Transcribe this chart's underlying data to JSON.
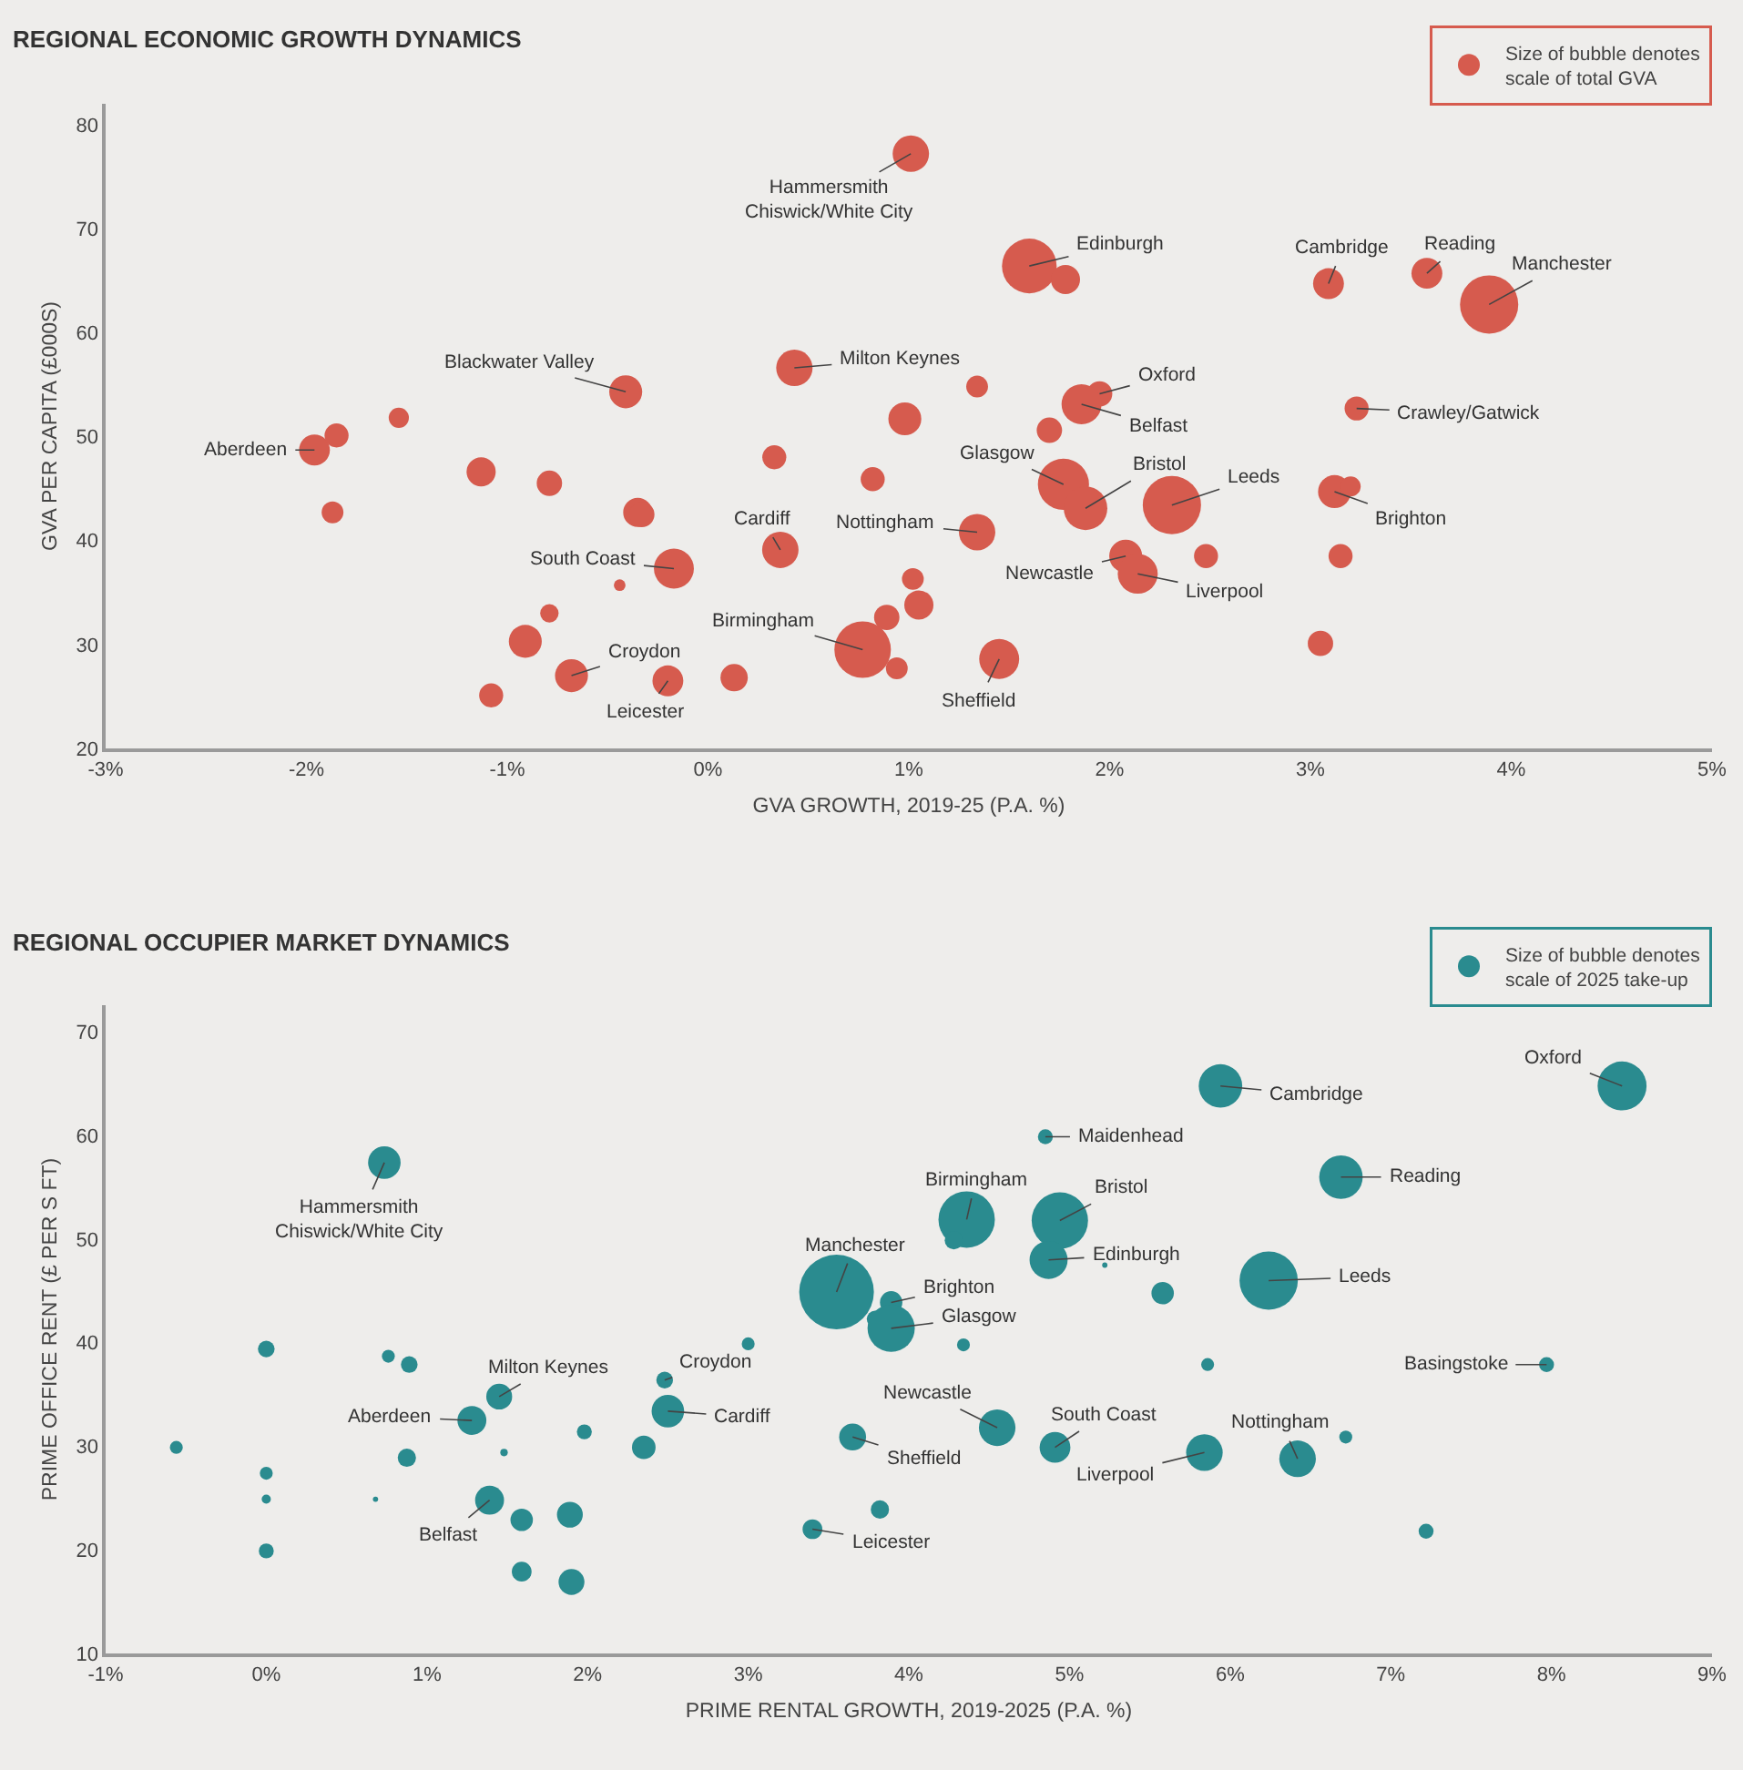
{
  "chart_data": [
    {
      "type": "bubble",
      "title": "REGIONAL ECONOMIC GROWTH DYNAMICS",
      "xlabel": "GVA GROWTH, 2019-25 (P.A. %)",
      "ylabel": "GVA PER CAPITA (£000S)",
      "xlim": [
        -3,
        5
      ],
      "ylim": [
        20,
        82
      ],
      "xticks": [
        {
          "value": -3,
          "label": "-3%"
        },
        {
          "value": -2,
          "label": "-2%"
        },
        {
          "value": -1,
          "label": "-1%"
        },
        {
          "value": 0,
          "label": "0%"
        },
        {
          "value": 1,
          "label": "1%"
        },
        {
          "value": 2,
          "label": "2%"
        },
        {
          "value": 3,
          "label": "3%"
        },
        {
          "value": 4,
          "label": "4%"
        },
        {
          "value": 5,
          "label": "5%"
        }
      ],
      "yticks": [
        20,
        30,
        40,
        50,
        60,
        70,
        80
      ],
      "legend": "top right",
      "grid": false,
      "series": [
        {
          "name": "Size of bubble denotes\nscale of total GVA",
          "color": "#d65b4e",
          "x": [
            1.01,
            1.6,
            1.78,
            3.09,
            3.58,
            3.89,
            0.43,
            -0.41,
            1.34,
            1.95,
            1.86,
            0.98,
            1.7,
            3.23,
            -1.96,
            -1.85,
            -1.54,
            -1.87,
            -1.13,
            -0.79,
            -0.35,
            -0.33,
            0.36,
            -0.17,
            -0.44,
            -0.79,
            -0.91,
            -0.68,
            -1.08,
            -0.2,
            0.13,
            0.77,
            0.33,
            0.82,
            1.34,
            1.77,
            1.88,
            2.31,
            3.12,
            3.2,
            3.15,
            2.48,
            2.08,
            2.14,
            1.02,
            1.05,
            0.89,
            0.94,
            1.45,
            3.05
          ],
          "values": [
            77.2,
            66.4,
            65.1,
            64.7,
            65.7,
            62.7,
            56.6,
            54.3,
            54.8,
            54.1,
            53.1,
            51.7,
            50.6,
            52.7,
            48.7,
            50.1,
            51.8,
            42.7,
            46.6,
            45.5,
            42.7,
            42.5,
            39.1,
            37.3,
            35.7,
            33.0,
            30.3,
            27.0,
            25.1,
            26.5,
            26.8,
            29.5,
            48.0,
            45.9,
            40.8,
            45.4,
            43.1,
            43.4,
            44.7,
            45.2,
            38.5,
            38.5,
            38.5,
            36.8,
            36.3,
            33.8,
            32.6,
            27.7,
            28.6,
            30.1
          ],
          "sizes": [
            0.39,
            0.88,
            0.25,
            0.28,
            0.28,
            1,
            0.39,
            0.32,
            0.14,
            0.19,
            0.47,
            0.32,
            0.19,
            0.17,
            0.28,
            0.17,
            0.12,
            0.14,
            0.25,
            0.19,
            0.25,
            0.19,
            0.39,
            0.47,
            0.04,
            0.1,
            0.32,
            0.32,
            0.17,
            0.28,
            0.22,
            0.94,
            0.17,
            0.17,
            0.39,
            0.77,
            0.56,
            1,
            0.32,
            0.12,
            0.17,
            0.17,
            0.32,
            0.47,
            0.14,
            0.25,
            0.19,
            0.14,
            0.47,
            0.19
          ]
        }
      ],
      "annotations": [
        {
          "text": "Hammersmith\nChiswick/White City",
          "x": 1.01,
          "y": 77.2
        },
        {
          "text": "Edinburgh",
          "x": 1.6,
          "y": 66.4
        },
        {
          "text": "Cambridge",
          "x": 3.09,
          "y": 64.7
        },
        {
          "text": "Reading",
          "x": 3.58,
          "y": 65.7
        },
        {
          "text": "Manchester",
          "x": 3.89,
          "y": 62.7
        },
        {
          "text": "Milton Keynes",
          "x": 0.43,
          "y": 56.6
        },
        {
          "text": "Blackwater Valley",
          "x": -0.41,
          "y": 54.3
        },
        {
          "text": "Oxford",
          "x": 1.95,
          "y": 54.1
        },
        {
          "text": "Belfast",
          "x": 1.86,
          "y": 53.1
        },
        {
          "text": "Crawley/Gatwick",
          "x": 3.23,
          "y": 52.7
        },
        {
          "text": "Aberdeen",
          "x": -1.96,
          "y": 48.7
        },
        {
          "text": "Glasgow",
          "x": 1.77,
          "y": 45.4
        },
        {
          "text": "Bristol",
          "x": 1.88,
          "y": 43.1
        },
        {
          "text": "Leeds",
          "x": 2.31,
          "y": 43.4
        },
        {
          "text": "Cardiff",
          "x": 0.36,
          "y": 39.1
        },
        {
          "text": "Nottingham",
          "x": 1.34,
          "y": 40.8
        },
        {
          "text": "Brighton",
          "x": 3.12,
          "y": 44.7
        },
        {
          "text": "South Coast",
          "x": -0.17,
          "y": 37.3
        },
        {
          "text": "Newcastle",
          "x": 2.08,
          "y": 38.5
        },
        {
          "text": "Liverpool",
          "x": 2.14,
          "y": 36.8
        },
        {
          "text": "Birmingham",
          "x": 0.77,
          "y": 29.5
        },
        {
          "text": "Croydon",
          "x": -0.68,
          "y": 27.0
        },
        {
          "text": "Leicester",
          "x": -0.2,
          "y": 26.5
        },
        {
          "text": "Sheffield",
          "x": 1.45,
          "y": 28.6
        }
      ]
    },
    {
      "type": "bubble",
      "title": "REGIONAL OCCUPIER MARKET DYNAMICS",
      "xlabel": "PRIME RENTAL GROWTH, 2019-2025 (P.A. %)",
      "ylabel": "PRIME OFFICE RENT (£ PER S FT)",
      "xlim": [
        -1,
        9
      ],
      "ylim": [
        10,
        72.6
      ],
      "xticks": [
        {
          "value": -1,
          "label": "-1%"
        },
        {
          "value": 0,
          "label": "0%"
        },
        {
          "value": 1,
          "label": "1%"
        },
        {
          "value": 2,
          "label": "2%"
        },
        {
          "value": 3,
          "label": "3%"
        },
        {
          "value": 4,
          "label": "4%"
        },
        {
          "value": 5,
          "label": "5%"
        },
        {
          "value": 6,
          "label": "6%"
        },
        {
          "value": 7,
          "label": "7%"
        },
        {
          "value": 8,
          "label": "8%"
        },
        {
          "value": 9,
          "label": "9%"
        }
      ],
      "yticks": [
        10,
        20,
        30,
        40,
        50,
        60,
        70
      ],
      "legend": "top right",
      "grid": false,
      "series": [
        {
          "name": "Size of bubble denotes\nscale of 2025 take-up",
          "color": "#2a8b8f",
          "x": [
            0.735,
            0.0,
            0.76,
            0.89,
            1.45,
            1.28,
            -0.56,
            0.0,
            0.0,
            0.68,
            0.875,
            1.48,
            1.98,
            1.39,
            1.59,
            1.89,
            1.59,
            1.9,
            0.0,
            2.48,
            2.5,
            2.35,
            3.0,
            3.65,
            3.4,
            3.55,
            3.82,
            5.94,
            8.44,
            4.85,
            6.69,
            4.36,
            4.28,
            4.94,
            4.87,
            5.22,
            5.58,
            6.24,
            3.89,
            3.79,
            3.89,
            4.34,
            5.86,
            7.97,
            4.55,
            4.91,
            5.84,
            6.42,
            6.72,
            7.22
          ],
          "values": [
            57.4,
            39.4,
            38.7,
            37.9,
            34.8,
            32.5,
            29.9,
            27.4,
            24.9,
            24.9,
            28.9,
            29.4,
            31.4,
            24.8,
            22.9,
            23.4,
            17.9,
            16.9,
            19.9,
            36.4,
            33.4,
            29.9,
            39.9,
            30.9,
            22.0,
            44.9,
            23.9,
            64.8,
            64.8,
            59.9,
            56.0,
            51.9,
            49.9,
            51.8,
            48.0,
            47.5,
            44.8,
            46.0,
            43.9,
            42.3,
            41.4,
            39.8,
            37.9,
            37.9,
            31.8,
            29.9,
            29.4,
            28.8,
            30.9,
            21.8
          ],
          "sizes": [
            0.19,
            0.05,
            0.03,
            0.05,
            0.12,
            0.15,
            0.03,
            0.03,
            0.015,
            0.005,
            0.06,
            0.01,
            0.04,
            0.15,
            0.09,
            0.12,
            0.07,
            0.12,
            0.04,
            0.05,
            0.19,
            0.1,
            0.03,
            0.13,
            0.07,
            1,
            0.06,
            0.34,
            0.43,
            0.04,
            0.34,
            0.57,
            0.06,
            0.57,
            0.26,
            0.005,
            0.09,
            0.61,
            0.09,
            0.05,
            0.4,
            0.03,
            0.03,
            0.04,
            0.24,
            0.17,
            0.24,
            0.24,
            0.03,
            0.04
          ]
        }
      ],
      "annotations": [
        {
          "text": "Hammersmith\nChiswick/White City",
          "x": 0.735,
          "y": 57.4
        },
        {
          "text": "Cambridge",
          "x": 5.94,
          "y": 64.8
        },
        {
          "text": "Oxford",
          "x": 8.44,
          "y": 64.8
        },
        {
          "text": "Maidenhead",
          "x": 4.85,
          "y": 59.9
        },
        {
          "text": "Reading",
          "x": 6.69,
          "y": 56.0
        },
        {
          "text": "Birmingham",
          "x": 4.36,
          "y": 51.9
        },
        {
          "text": "Bristol",
          "x": 4.94,
          "y": 51.8
        },
        {
          "text": "Edinburgh",
          "x": 4.87,
          "y": 48.0
        },
        {
          "text": "Leeds",
          "x": 6.24,
          "y": 46.0
        },
        {
          "text": "Manchester",
          "x": 3.55,
          "y": 44.9
        },
        {
          "text": "Brighton",
          "x": 3.89,
          "y": 43.9
        },
        {
          "text": "Glasgow",
          "x": 3.89,
          "y": 41.4
        },
        {
          "text": "Basingstoke",
          "x": 7.97,
          "y": 37.9
        },
        {
          "text": "Milton Keynes",
          "x": 1.45,
          "y": 34.8
        },
        {
          "text": "Croydon",
          "x": 2.48,
          "y": 36.4
        },
        {
          "text": "Aberdeen",
          "x": 1.28,
          "y": 32.5
        },
        {
          "text": "Cardiff",
          "x": 2.5,
          "y": 33.4
        },
        {
          "text": "Newcastle",
          "x": 4.55,
          "y": 31.8
        },
        {
          "text": "South Coast",
          "x": 4.91,
          "y": 29.9
        },
        {
          "text": "Sheffield",
          "x": 3.65,
          "y": 30.9
        },
        {
          "text": "Nottingham",
          "x": 6.42,
          "y": 28.8
        },
        {
          "text": "Liverpool",
          "x": 5.84,
          "y": 29.4
        },
        {
          "text": "Belfast",
          "x": 1.39,
          "y": 24.8
        },
        {
          "text": "Leicester",
          "x": 3.4,
          "y": 22.0
        }
      ]
    }
  ]
}
